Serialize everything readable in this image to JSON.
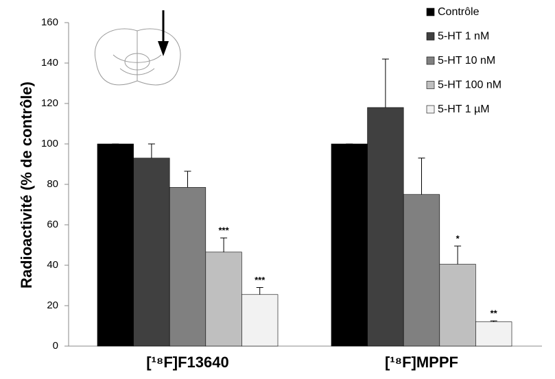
{
  "chart_data": {
    "type": "bar",
    "y_label": "Radioactivité (% de contrôle)",
    "categories": [
      "[¹⁸F]F13640",
      "[¹⁸F]MPPF"
    ],
    "series": [
      {
        "name": "Contrôle",
        "color": "#000000",
        "values": [
          100,
          100
        ],
        "errors": [
          0,
          0
        ],
        "annotations": [
          null,
          null
        ]
      },
      {
        "name": "5-HT 1 nM",
        "color": "#404040",
        "values": [
          93,
          118
        ],
        "errors": [
          7,
          24
        ],
        "annotations": [
          null,
          null
        ]
      },
      {
        "name": "5-HT 10 nM",
        "color": "#808080",
        "values": [
          78.5,
          75
        ],
        "errors": [
          8,
          18
        ],
        "annotations": [
          null,
          null
        ]
      },
      {
        "name": "5-HT 100 nM",
        "color": "#bfbfbf",
        "values": [
          46.5,
          40.5
        ],
        "errors": [
          7,
          9
        ],
        "annotations": [
          "***",
          "*"
        ]
      },
      {
        "name": "5-HT 1 µM",
        "color": "#f2f2f2",
        "values": [
          25.5,
          12
        ],
        "errors": [
          3.5,
          0.5
        ],
        "annotations": [
          "***",
          "**"
        ]
      }
    ],
    "ylim": [
      0,
      160
    ],
    "yticks": [
      0,
      20,
      40,
      60,
      80,
      100,
      120,
      140,
      160
    ],
    "grid": false
  }
}
